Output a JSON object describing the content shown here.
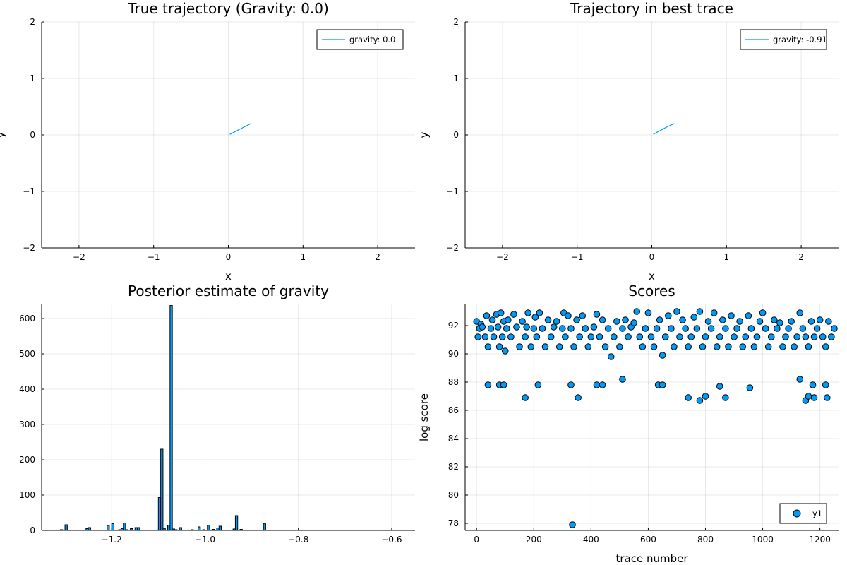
{
  "chart_data": [
    {
      "type": "line",
      "title": "True trajectory (Gravity: 0.0)",
      "xlabel": "x",
      "ylabel": "y",
      "xlim": [
        -2.5,
        2.5
      ],
      "ylim": [
        -2,
        2
      ],
      "xticks": [
        -2,
        -1,
        0,
        1,
        2
      ],
      "yticks": [
        -2,
        -1,
        0,
        1,
        2
      ],
      "xtick_labels": [
        "−2",
        "−1",
        "0",
        "1",
        "2"
      ],
      "ytick_labels": [
        "−2",
        "−1",
        "0",
        "1",
        "2"
      ],
      "grid": true,
      "legend_position": "top-right",
      "series": [
        {
          "name": "gravity: 0.0",
          "x": [
            0.02,
            0.3
          ],
          "y": [
            0.01,
            0.2
          ]
        }
      ]
    },
    {
      "type": "line",
      "title": "Trajectory in best trace",
      "xlabel": "x",
      "ylabel": "y",
      "xlim": [
        -2.5,
        2.5
      ],
      "ylim": [
        -2,
        2
      ],
      "xticks": [
        -2,
        -1,
        0,
        1,
        2
      ],
      "yticks": [
        -2,
        -1,
        0,
        1,
        2
      ],
      "xtick_labels": [
        "−2",
        "−1",
        "0",
        "1",
        "2"
      ],
      "ytick_labels": [
        "−2",
        "−1",
        "0",
        "1",
        "2"
      ],
      "grid": true,
      "legend_position": "top-right",
      "series": [
        {
          "name": "gravity: -0.91",
          "x": [
            0.02,
            0.1,
            0.2,
            0.3
          ],
          "y": [
            0.01,
            0.07,
            0.14,
            0.2
          ]
        }
      ]
    },
    {
      "type": "bar",
      "title": "Posterior estimate of gravity",
      "xlabel": "",
      "ylabel": "",
      "xlim": [
        -1.35,
        -0.55
      ],
      "ylim": [
        0,
        640
      ],
      "xticks": [
        -1.2,
        -1.0,
        -0.8,
        -0.6
      ],
      "xtick_labels": [
        "−1.2",
        "−1.0",
        "−0.8",
        "−0.6"
      ],
      "yticks": [
        0,
        100,
        200,
        300,
        400,
        500,
        600
      ],
      "ytick_labels": [
        "0",
        "100",
        "200",
        "300",
        "400",
        "500",
        "600"
      ],
      "grid": true,
      "bin_width": 0.005,
      "bin_starts": [
        -1.31,
        -1.3,
        -1.255,
        -1.25,
        -1.21,
        -1.2,
        -1.185,
        -1.18,
        -1.175,
        -1.17,
        -1.16,
        -1.15,
        -1.145,
        -1.1,
        -1.095,
        -1.09,
        -1.08,
        -1.075,
        -1.07,
        -1.065,
        -1.055,
        -1.03,
        -1.015,
        -1.005,
        -0.995,
        -0.985,
        -0.975,
        -0.97,
        -0.94,
        -0.935,
        -0.925,
        -0.875,
        -0.66,
        -0.645,
        -0.63
      ],
      "values": [
        2,
        16,
        5,
        8,
        14,
        19,
        2,
        5,
        21,
        2,
        5,
        8,
        8,
        93,
        230,
        6,
        15,
        637,
        4,
        2,
        8,
        2,
        10,
        2,
        15,
        3,
        7,
        12,
        4,
        42,
        3,
        20,
        1,
        1,
        1
      ]
    },
    {
      "type": "scatter",
      "title": "Scores",
      "xlabel": "trace number",
      "ylabel": "log score",
      "xlim": [
        -40,
        1265
      ],
      "ylim": [
        77.5,
        93.5
      ],
      "xticks": [
        0,
        200,
        400,
        600,
        800,
        1000,
        1200
      ],
      "xtick_labels": [
        "0",
        "200",
        "400",
        "600",
        "800",
        "1000",
        "1200"
      ],
      "yticks": [
        78,
        80,
        82,
        84,
        86,
        88,
        90,
        92
      ],
      "ytick_labels": [
        "78",
        "80",
        "82",
        "84",
        "86",
        "88",
        "90",
        "92"
      ],
      "grid": true,
      "legend_position": "bottom-right",
      "series": [
        {
          "name": "y1",
          "x": [
            0,
            5,
            10,
            15,
            20,
            30,
            35,
            40,
            50,
            55,
            60,
            70,
            75,
            80,
            85,
            90,
            95,
            100,
            105,
            110,
            120,
            130,
            140,
            150,
            160,
            170,
            175,
            180,
            190,
            200,
            205,
            210,
            220,
            230,
            240,
            250,
            260,
            270,
            280,
            290,
            300,
            305,
            310,
            320,
            330,
            340,
            350,
            360,
            370,
            380,
            390,
            400,
            410,
            420,
            430,
            440,
            450,
            460,
            470,
            480,
            490,
            500,
            510,
            520,
            530,
            540,
            550,
            560,
            570,
            580,
            590,
            600,
            610,
            620,
            630,
            640,
            650,
            660,
            670,
            680,
            690,
            700,
            710,
            720,
            730,
            740,
            750,
            760,
            770,
            780,
            790,
            800,
            810,
            820,
            830,
            840,
            850,
            860,
            870,
            880,
            890,
            900,
            910,
            920,
            930,
            940,
            950,
            960,
            970,
            980,
            990,
            1000,
            1010,
            1020,
            1030,
            1040,
            1050,
            1060,
            1070,
            1080,
            1090,
            1100,
            1110,
            1120,
            1130,
            1140,
            1150,
            1160,
            1170,
            1180,
            1190,
            1200,
            1210,
            1220,
            1230,
            1240,
            1250,
            40,
            80,
            95,
            170,
            215,
            330,
            355,
            420,
            440,
            510,
            635,
            650,
            740,
            780,
            800,
            850,
            870,
            955,
            1130,
            1150,
            1160,
            1175,
            1180,
            1220,
            1225,
            335
          ],
          "y": [
            92.3,
            91.2,
            91.8,
            92.1,
            91.9,
            91.2,
            92.7,
            90.5,
            91.8,
            92.4,
            91.2,
            92.8,
            91.9,
            90.5,
            92.9,
            91.2,
            92.3,
            90.2,
            91.8,
            92.4,
            91.2,
            92.8,
            91.9,
            90.5,
            92.3,
            91.2,
            91.9,
            92.9,
            90.5,
            91.8,
            92.6,
            91.2,
            92.9,
            91.8,
            90.5,
            92.4,
            91.2,
            91.9,
            92.3,
            90.5,
            91.8,
            92.9,
            91.2,
            92.7,
            91.8,
            90.5,
            92.4,
            91.2,
            92.7,
            91.8,
            90.5,
            91.2,
            91.9,
            92.8,
            91.2,
            92.4,
            90.5,
            91.8,
            89.8,
            91.2,
            92.3,
            90.5,
            91.8,
            92.4,
            91.2,
            91.9,
            92.2,
            93.0,
            91.2,
            90.5,
            91.8,
            92.9,
            91.2,
            90.5,
            91.8,
            92.4,
            89.9,
            91.2,
            92.7,
            91.8,
            90.5,
            93.0,
            91.2,
            92.4,
            91.8,
            90.5,
            91.2,
            92.6,
            91.8,
            93.0,
            90.5,
            91.2,
            92.3,
            91.8,
            92.9,
            90.5,
            91.2,
            92.4,
            91.8,
            90.5,
            92.7,
            91.2,
            91.8,
            92.3,
            90.5,
            91.2,
            92.7,
            91.8,
            90.5,
            91.2,
            92.3,
            92.9,
            91.8,
            90.5,
            91.2,
            92.4,
            91.8,
            92.2,
            90.5,
            91.2,
            91.8,
            92.3,
            90.5,
            91.2,
            92.9,
            91.8,
            91.2,
            90.5,
            92.3,
            91.2,
            91.8,
            92.4,
            91.2,
            90.5,
            92.3,
            91.2,
            91.8,
            87.8,
            87.8,
            87.8,
            86.9,
            87.8,
            87.8,
            86.9,
            87.8,
            87.8,
            88.2,
            87.8,
            87.8,
            86.9,
            86.7,
            87.0,
            87.7,
            86.9,
            87.6,
            88.2,
            86.7,
            87.0,
            87.8,
            86.9,
            87.8,
            86.9,
            77.9
          ]
        }
      ],
      "band_label_note": ""
    }
  ]
}
